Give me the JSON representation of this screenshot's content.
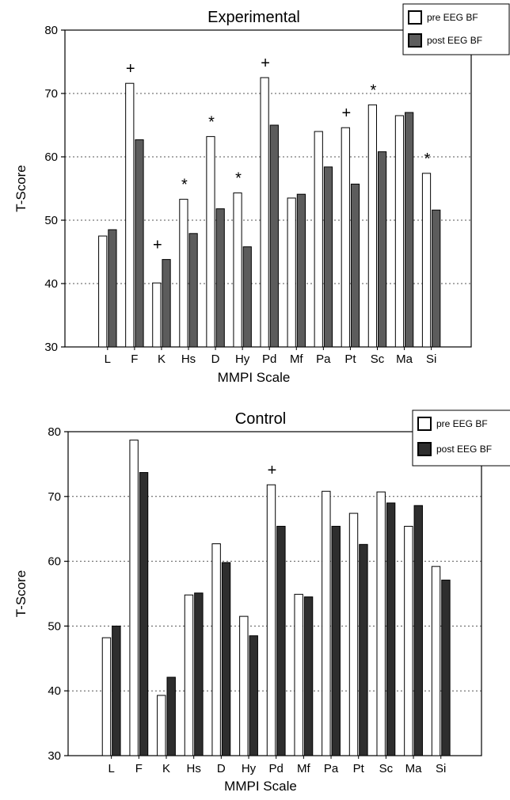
{
  "chart_data": [
    {
      "type": "bar",
      "title": "Experimental",
      "xlabel": "MMPI Scale",
      "ylabel": "T-Score",
      "ylim": [
        30,
        80
      ],
      "yticks": [
        30,
        40,
        50,
        60,
        70,
        80
      ],
      "grid": "dotted horizontal",
      "legend_position": "top-right",
      "categories": [
        "L",
        "F",
        "K",
        "Hs",
        "D",
        "Hy",
        "Pd",
        "Mf",
        "Pa",
        "Pt",
        "Sc",
        "Ma",
        "Si"
      ],
      "series": [
        {
          "name": "pre EEG BF",
          "color": "#ffffff",
          "values": [
            47.5,
            71.6,
            40.1,
            53.3,
            63.2,
            54.3,
            72.5,
            53.5,
            64.0,
            64.6,
            68.2,
            66.5,
            57.4
          ]
        },
        {
          "name": "post EEG BF",
          "color": "#5c5c5c",
          "values": [
            48.5,
            62.7,
            43.8,
            47.9,
            51.8,
            45.8,
            65.0,
            54.1,
            58.4,
            55.7,
            60.8,
            67.0,
            51.6
          ]
        }
      ],
      "annotations": [
        {
          "category": "F",
          "text": "+"
        },
        {
          "category": "K",
          "text": "+"
        },
        {
          "category": "Hs",
          "text": "*"
        },
        {
          "category": "D",
          "text": "*"
        },
        {
          "category": "Hy",
          "text": "*"
        },
        {
          "category": "Pd",
          "text": "+"
        },
        {
          "category": "Pt",
          "text": "+"
        },
        {
          "category": "Sc",
          "text": "*"
        },
        {
          "category": "Si",
          "text": "*"
        }
      ]
    },
    {
      "type": "bar",
      "title": "Control",
      "xlabel": "MMPI Scale",
      "ylabel": "T-Score",
      "ylim": [
        30,
        80
      ],
      "yticks": [
        30,
        40,
        50,
        60,
        70,
        80
      ],
      "grid": "dotted horizontal",
      "legend_position": "top-right",
      "categories": [
        "L",
        "F",
        "K",
        "Hs",
        "D",
        "Hy",
        "Pd",
        "Mf",
        "Pa",
        "Pt",
        "Sc",
        "Ma",
        "Si"
      ],
      "series": [
        {
          "name": "pre EEG BF",
          "color": "#ffffff",
          "values": [
            48.2,
            78.7,
            39.3,
            54.8,
            62.7,
            51.5,
            71.8,
            54.9,
            70.8,
            67.4,
            70.7,
            65.4,
            59.2
          ]
        },
        {
          "name": "post EEG BF",
          "color": "#2e2e2e",
          "values": [
            50.0,
            73.7,
            42.1,
            55.1,
            59.8,
            48.5,
            65.4,
            54.5,
            65.4,
            62.6,
            69.0,
            68.6,
            57.1
          ]
        }
      ],
      "annotations": [
        {
          "category": "Pd",
          "text": "+"
        }
      ]
    }
  ]
}
